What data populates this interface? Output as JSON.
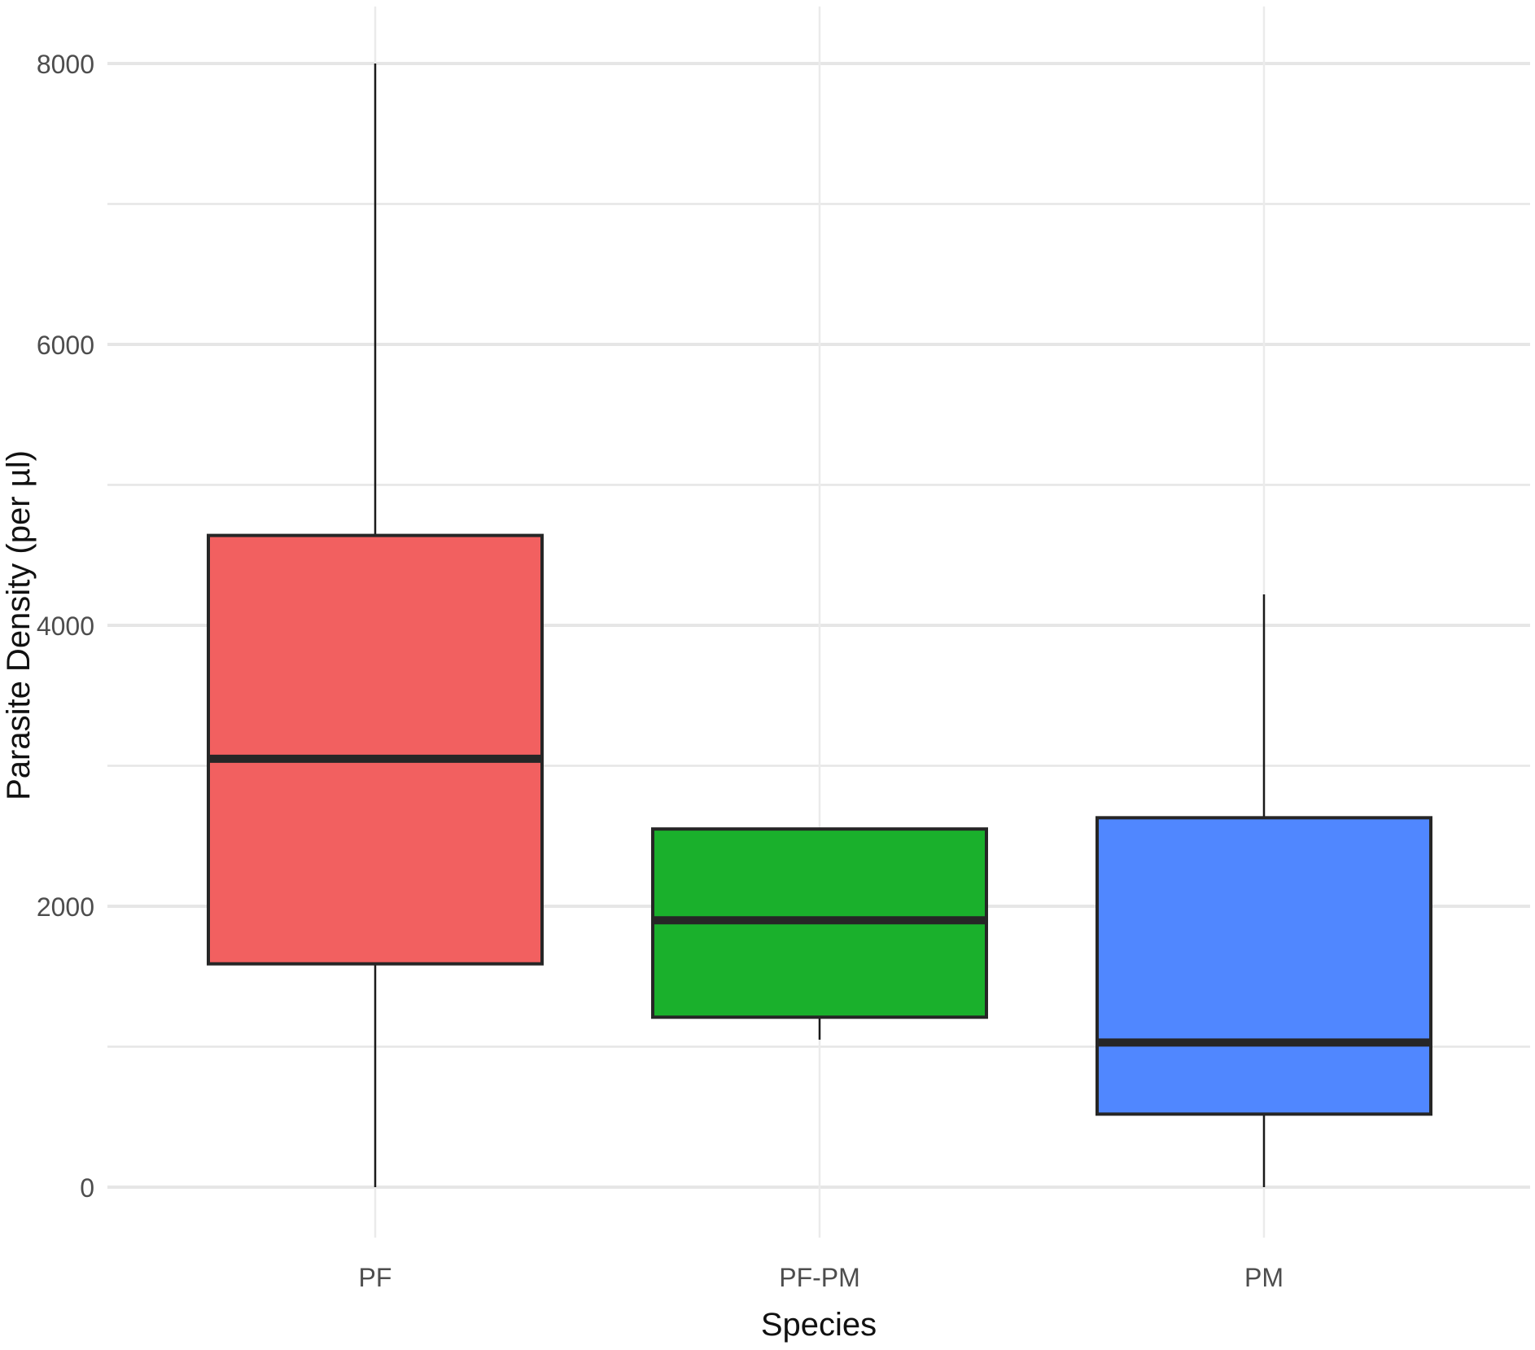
{
  "chart_data": {
    "type": "boxplot",
    "title": "",
    "xlabel": "Species",
    "ylabel": "Parasite Density (per µl)",
    "ylim": [
      -350,
      8400
    ],
    "y_ticks": [
      0,
      2000,
      4000,
      6000,
      8000
    ],
    "y_tick_labels": [
      "0",
      "2000",
      "4000",
      "6000",
      "8000"
    ],
    "categories": [
      "PF",
      "PF-PM",
      "PM"
    ],
    "grid": true,
    "legend": "none",
    "series": [
      {
        "category": "PF",
        "color": "#F26060",
        "whisker_low": 0,
        "q1": 1590,
        "median": 3050,
        "q3": 4640,
        "whisker_high": 8000
      },
      {
        "category": "PF-PM",
        "color": "#1AB02C",
        "whisker_low": 1050,
        "q1": 1210,
        "median": 1900,
        "q3": 2550,
        "whisker_high": 2550
      },
      {
        "category": "PM",
        "color": "#5087FF",
        "whisker_low": 0,
        "q1": 520,
        "median": 1030,
        "q3": 2630,
        "whisker_high": 4220
      }
    ]
  }
}
